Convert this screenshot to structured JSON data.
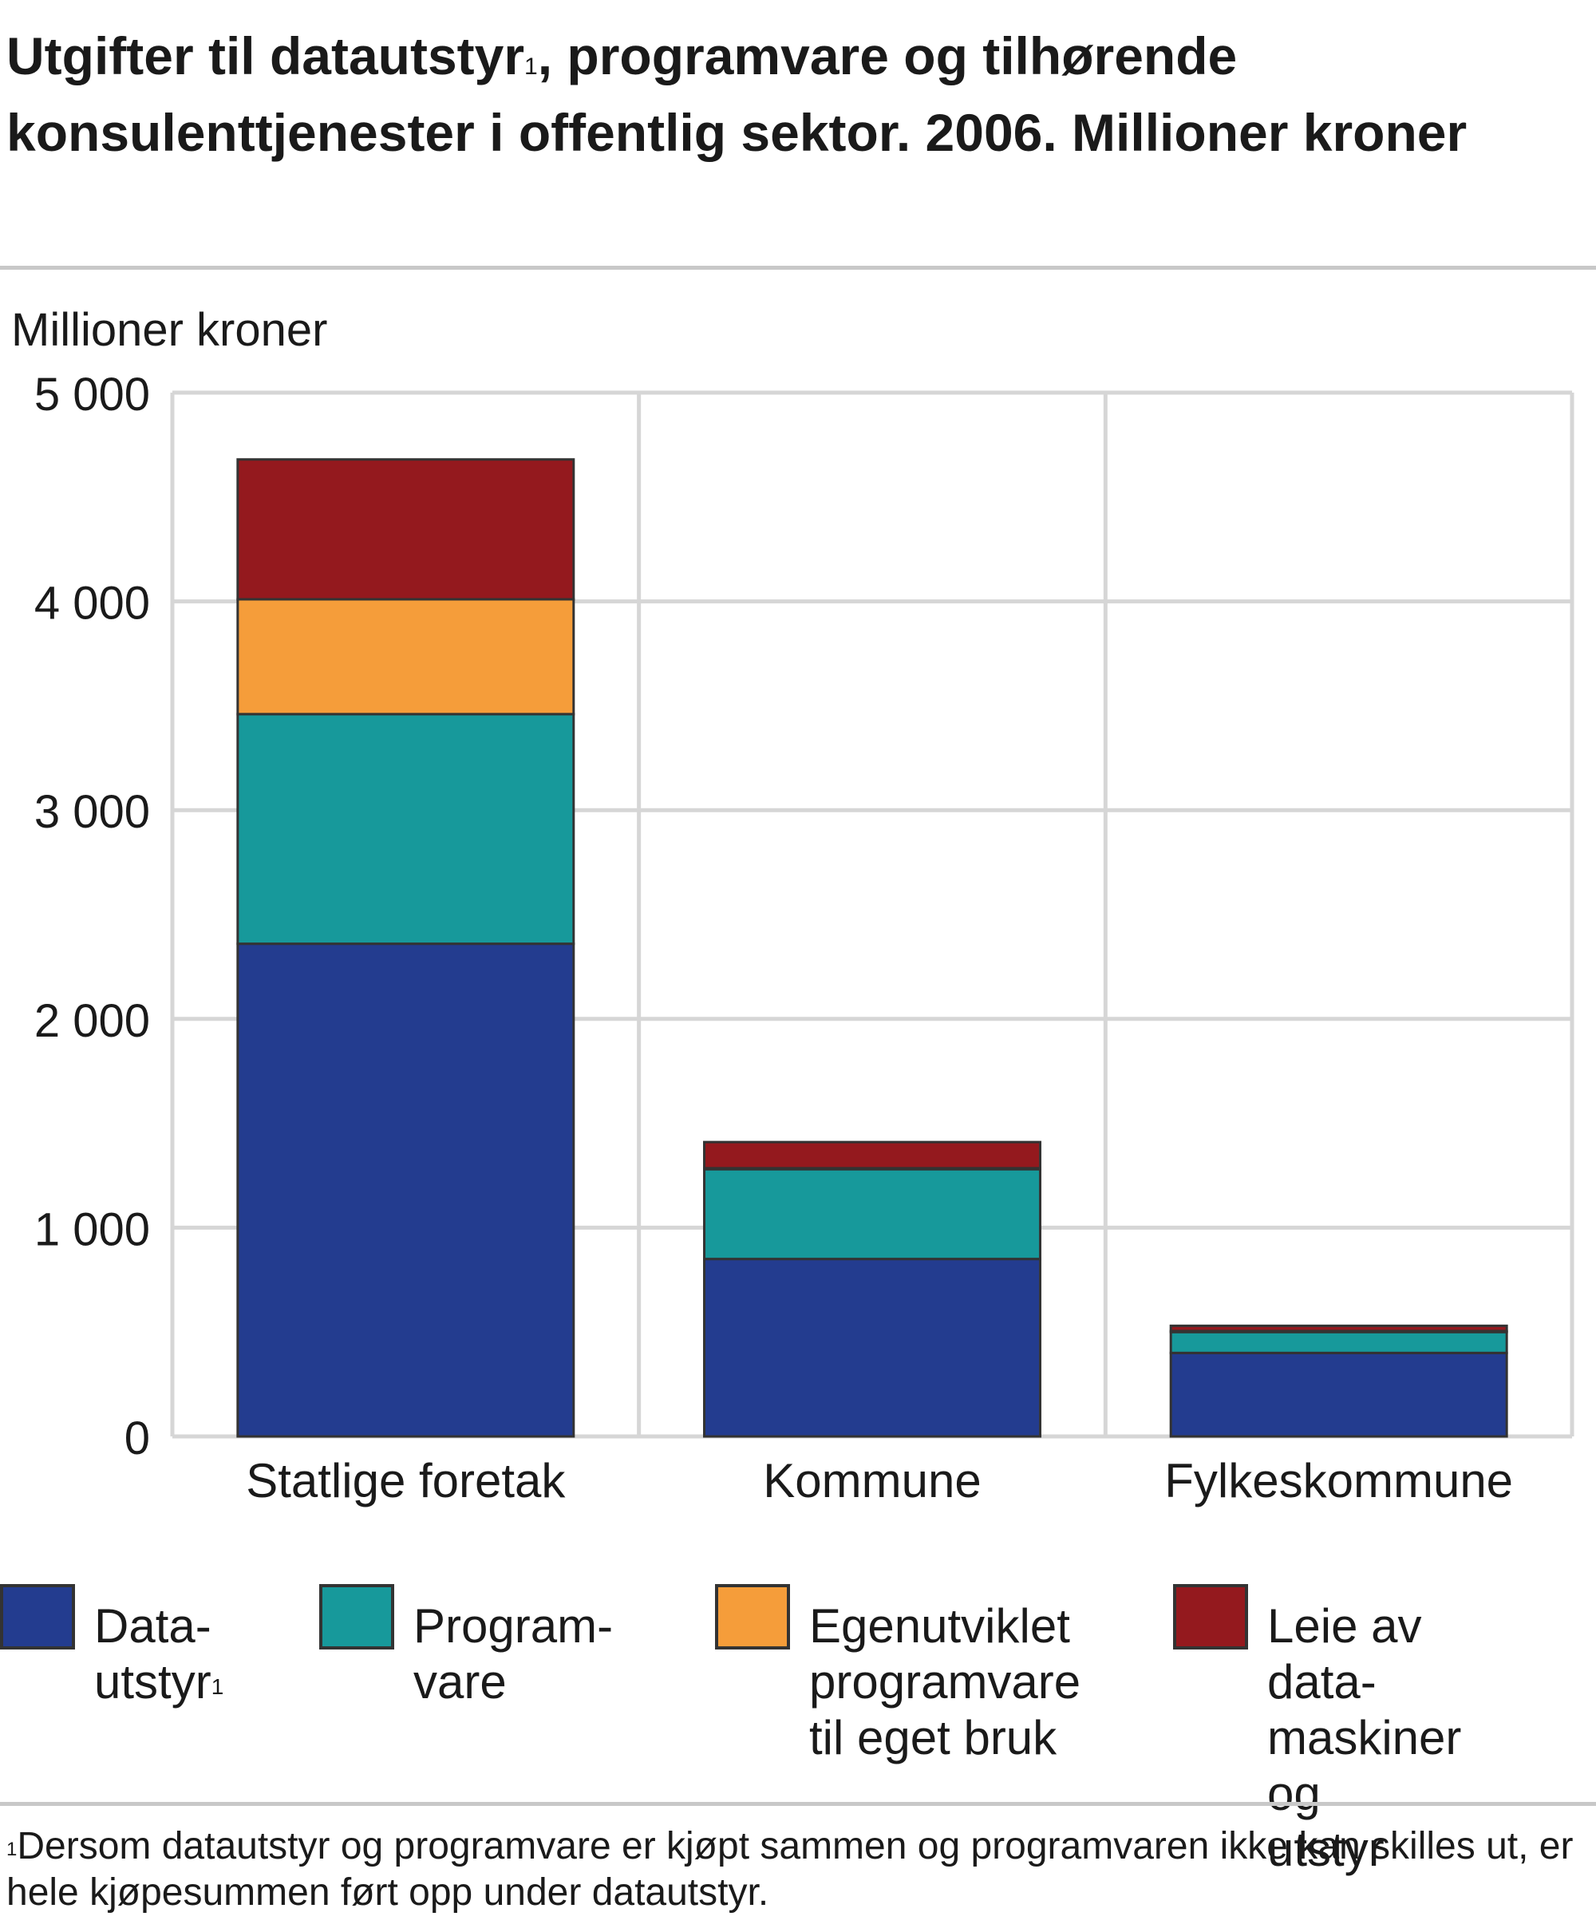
{
  "title": {
    "text_before_sup": "Utgifter til datautstyr",
    "sup": "1",
    "text_after_sup": ", programvare og tilhørende konsulenttjenester i offentlig sektor. 2006. Millioner kroner"
  },
  "footnote": {
    "marker": "1",
    "text": "Dersom datautstyr og programvare er kjøpt sammen og programvaren ikke kan skilles ut, er hele kjøpesummen ført opp under datautstyr."
  },
  "legend": [
    {
      "label": "Data-\nutstyr",
      "sup": "1",
      "color": "#233c8f"
    },
    {
      "label": "Program-\nvare",
      "sup": "",
      "color": "#17999b"
    },
    {
      "label": "Egenutviklet\nprogramvare\ntil eget bruk",
      "sup": "",
      "color": "#f59d3a"
    },
    {
      "label": "Leie av data-\nmaskiner og\nutstyr",
      "sup": "",
      "color": "#94191e"
    }
  ],
  "chart_data": {
    "type": "bar",
    "stacked": true,
    "title": "Utgifter til datautstyr¹, programvare og tilhørende konsulenttjenester i offentlig sektor. 2006. Millioner kroner",
    "xlabel": "",
    "ylabel": "Millioner kroner",
    "ylim": [
      0,
      5000
    ],
    "yticks": [
      0,
      1000,
      2000,
      3000,
      4000,
      5000
    ],
    "ytick_labels": [
      "0",
      "1 000",
      "2 000",
      "3 000",
      "4 000",
      "5 000"
    ],
    "grid": true,
    "legend_position": "bottom",
    "categories": [
      "Statlige foretak",
      "Kommune",
      "Fylkeskommune"
    ],
    "series": [
      {
        "name": "Datautstyr¹",
        "color": "#233c8f",
        "values": [
          2360,
          850,
          400
        ]
      },
      {
        "name": "Programvare",
        "color": "#17999b",
        "values": [
          1100,
          430,
          100
        ]
      },
      {
        "name": "Egenutviklet programvare til eget bruk",
        "color": "#f59d3a",
        "values": [
          550,
          5,
          5
        ]
      },
      {
        "name": "Leie av datamaskiner og utstyr",
        "color": "#94191e",
        "values": [
          670,
          125,
          25
        ]
      }
    ]
  }
}
